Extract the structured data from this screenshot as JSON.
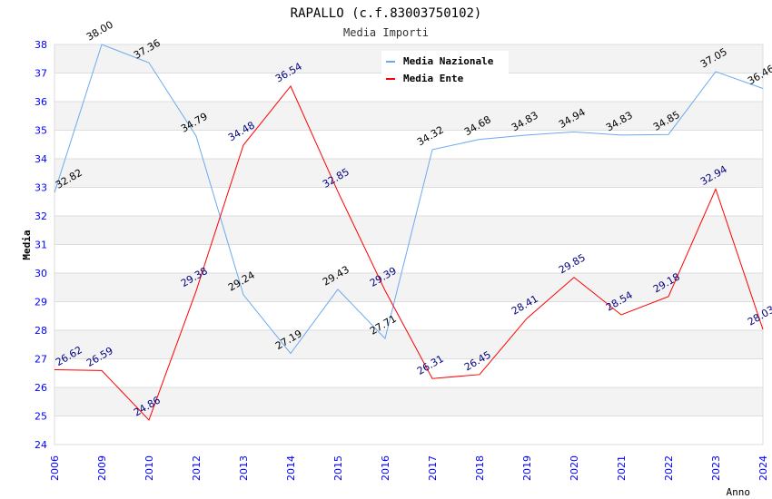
{
  "chart_data": {
    "type": "line",
    "title": "RAPALLO (c.f.83003750102)",
    "subtitle": "Media Importi",
    "xlabel": "Anno",
    "ylabel": "Media",
    "ylim": [
      24,
      38
    ],
    "yticks": [
      24,
      25,
      26,
      27,
      28,
      29,
      30,
      31,
      32,
      33,
      34,
      35,
      36,
      37,
      38
    ],
    "categories": [
      "2006",
      "2009",
      "2010",
      "2012",
      "2013",
      "2014",
      "2015",
      "2016",
      "2017",
      "2018",
      "2019",
      "2020",
      "2021",
      "2022",
      "2023",
      "2024"
    ],
    "series": [
      {
        "name": "Media Nazionale",
        "color": "#6aaaf0",
        "label_color": "#000000",
        "values": [
          32.82,
          38.0,
          37.36,
          34.79,
          29.24,
          27.19,
          29.43,
          27.71,
          34.32,
          34.68,
          34.83,
          34.94,
          34.83,
          34.85,
          37.05,
          36.46
        ]
      },
      {
        "name": "Media Ente",
        "color": "#ff0000",
        "label_color": "#000080",
        "values": [
          26.62,
          26.59,
          24.86,
          29.38,
          34.48,
          36.54,
          32.85,
          29.39,
          26.31,
          26.45,
          28.41,
          29.85,
          28.54,
          29.18,
          32.94,
          28.03
        ]
      }
    ],
    "legend": "top-right",
    "grid": true
  }
}
